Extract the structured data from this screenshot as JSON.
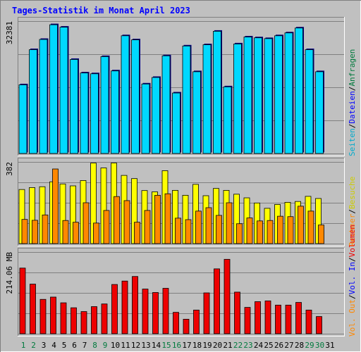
{
  "title": "Tages-Statistik im Monat April 2023",
  "colors": {
    "background": "#c0c0c0",
    "panel": "#c0c0c0",
    "grid": "#808080",
    "title": "#0000ff",
    "anfragen": "#00d8ff",
    "besuche": "#ffff00",
    "rechner": "#ff8800",
    "volumen": "#ee0000",
    "weekday_label": "#000000",
    "weekend_label": "#007a3d"
  },
  "chart_data": [
    {
      "type": "bar",
      "panel": "top",
      "ylabel_value": "32381",
      "ylim": [
        0,
        32381
      ],
      "grid": true,
      "legend": {
        "position": "right",
        "entries": [
          {
            "label": "Anfragen",
            "color": "#007a3d"
          },
          {
            "label": "Dateien",
            "color": "#0000ff"
          },
          {
            "label": "Seiten",
            "color": "#00aacc"
          }
        ],
        "separator": "/"
      },
      "categories": [
        "1",
        "2",
        "3",
        "4",
        "5",
        "6",
        "7",
        "8",
        "9",
        "10",
        "11",
        "12",
        "13",
        "14",
        "15",
        "16",
        "17",
        "18",
        "19",
        "20",
        "21",
        "22",
        "23",
        "24",
        "25",
        "26",
        "27",
        "28",
        "29",
        "30"
      ],
      "series": [
        {
          "name": "Anfragen",
          "color": "#00d8ff",
          "values": [
            16800,
            25400,
            27900,
            31500,
            30900,
            23000,
            19700,
            19500,
            23700,
            20200,
            28800,
            27800,
            17000,
            18600,
            23900,
            14800,
            26300,
            20000,
            26600,
            29900,
            16300,
            26800,
            28500,
            28300,
            28100,
            28800,
            29500,
            30700,
            25400,
            20000
          ]
        }
      ]
    },
    {
      "type": "bar",
      "panel": "middle",
      "ylabel_value": "382",
      "ylim": [
        0,
        382
      ],
      "grid": true,
      "legend": {
        "position": "right",
        "entries": [
          {
            "label": "Besuche",
            "color": "#cccc00"
          },
          {
            "label": "Rechner",
            "color": "#ff8800"
          }
        ],
        "separator": "/"
      },
      "categories": [
        "1",
        "2",
        "3",
        "4",
        "5",
        "6",
        "7",
        "8",
        "9",
        "10",
        "11",
        "12",
        "13",
        "14",
        "15",
        "16",
        "17",
        "18",
        "19",
        "20",
        "21",
        "22",
        "23",
        "24",
        "25",
        "26",
        "27",
        "28",
        "29",
        "30"
      ],
      "series": [
        {
          "name": "Besuche",
          "color": "#ffff00",
          "values": [
            253,
            262,
            266,
            289,
            279,
            270,
            295,
            377,
            354,
            377,
            319,
            304,
            248,
            242,
            341,
            249,
            226,
            277,
            224,
            258,
            249,
            231,
            214,
            190,
            165,
            183,
            193,
            197,
            221,
            211
          ]
        },
        {
          "name": "Rechner",
          "color": "#ff8800",
          "values": [
            113,
            109,
            134,
            349,
            108,
            100,
            191,
            96,
            155,
            220,
            201,
            100,
            155,
            226,
            233,
            119,
            112,
            152,
            168,
            132,
            191,
            93,
            120,
            106,
            108,
            128,
            126,
            175,
            152,
            87
          ]
        }
      ]
    },
    {
      "type": "bar",
      "panel": "bottom",
      "ylabel_value": "214.06 MB",
      "ylim": [
        0,
        214.06
      ],
      "grid": true,
      "legend": {
        "position": "right",
        "entries": [
          {
            "label": "Volumen",
            "color": "#ee0000"
          },
          {
            "label": "Vol. In",
            "color": "#0000ff"
          },
          {
            "label": "Vol. Out",
            "color": "#ff8800"
          }
        ],
        "separator": "/"
      },
      "categories": [
        "1",
        "2",
        "3",
        "4",
        "5",
        "6",
        "7",
        "8",
        "9",
        "10",
        "11",
        "12",
        "13",
        "14",
        "15",
        "16",
        "17",
        "18",
        "19",
        "20",
        "21",
        "22",
        "23",
        "24",
        "25",
        "26",
        "27",
        "28",
        "29",
        "30"
      ],
      "series": [
        {
          "name": "Volumen",
          "color": "#ee0000",
          "values": [
            172,
            130,
            90,
            96,
            81,
            68,
            58,
            71,
            78,
            129,
            138,
            150,
            117,
            108,
            119,
            56,
            38,
            62,
            107,
            170,
            195,
            109,
            69,
            84,
            86,
            75,
            75,
            82,
            62,
            45
          ]
        }
      ]
    }
  ],
  "x_axis": {
    "labels": [
      "1",
      "2",
      "3",
      "4",
      "5",
      "6",
      "7",
      "8",
      "9",
      "10",
      "11",
      "12",
      "13",
      "14",
      "15",
      "16",
      "17",
      "18",
      "19",
      "20",
      "21",
      "22",
      "23",
      "24",
      "25",
      "26",
      "27",
      "28",
      "29",
      "30",
      "31"
    ],
    "weekend_days": [
      "1",
      "2",
      "8",
      "9",
      "15",
      "16",
      "22",
      "23",
      "29",
      "30"
    ]
  }
}
